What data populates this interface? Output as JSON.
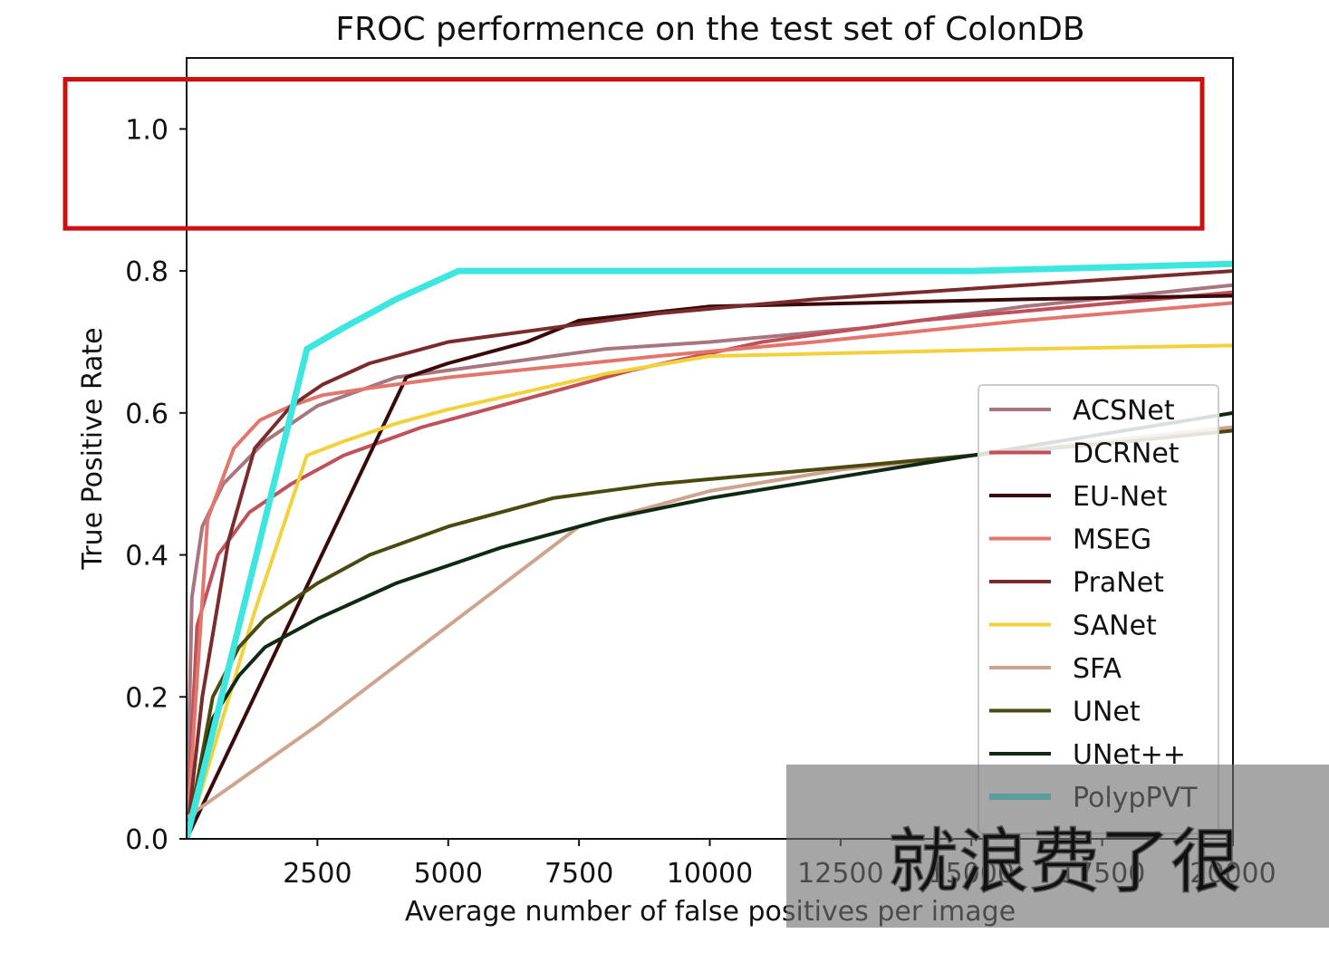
{
  "chart_data": {
    "type": "line",
    "title": "FROC performence on the test set of ColonDB",
    "xlabel": "Average number of false positives per image",
    "ylabel": "True Positive Rate",
    "xlim": [
      0,
      20000
    ],
    "ylim": [
      0,
      1.1
    ],
    "xticks": [
      2500,
      5000,
      7500,
      10000,
      12500,
      15000,
      17500,
      20000
    ],
    "xtick_labels": [
      "2500",
      "5000",
      "7500",
      "10000",
      "12500",
      "15000",
      "17500",
      "20000"
    ],
    "yticks": [
      0.0,
      0.2,
      0.4,
      0.6,
      0.8,
      1.0
    ],
    "ytick_labels": [
      "0.0",
      "0.2",
      "0.4",
      "0.6",
      "0.8",
      "1.0"
    ],
    "grid": false,
    "legend_position": "lower-right",
    "highlight_box": {
      "y_range": [
        0.86,
        1.07
      ],
      "color": "#cc1111"
    },
    "series": [
      {
        "name": "ACSNet",
        "color": "#a8767e",
        "width": 4,
        "x": [
          0,
          100,
          300,
          700,
          1500,
          2500,
          4000,
          6000,
          8000,
          10000,
          13000,
          16000,
          20000
        ],
        "y": [
          0,
          0.34,
          0.44,
          0.5,
          0.56,
          0.61,
          0.65,
          0.67,
          0.69,
          0.7,
          0.72,
          0.75,
          0.78
        ]
      },
      {
        "name": "DCRNet",
        "color": "#c0505a",
        "width": 4,
        "x": [
          0,
          200,
          600,
          1200,
          2000,
          3000,
          4500,
          6500,
          8500,
          11000,
          14000,
          17000,
          20000
        ],
        "y": [
          0,
          0.3,
          0.4,
          0.46,
          0.5,
          0.54,
          0.58,
          0.62,
          0.66,
          0.7,
          0.73,
          0.75,
          0.77
        ]
      },
      {
        "name": "EU-Net",
        "color": "#3a0a0a",
        "width": 4,
        "x": [
          0,
          4200,
          5000,
          6500,
          7500,
          10000,
          13000,
          16000,
          20000
        ],
        "y": [
          0,
          0.65,
          0.67,
          0.7,
          0.73,
          0.75,
          0.755,
          0.76,
          0.765
        ]
      },
      {
        "name": "MSEG",
        "color": "#e2766c",
        "width": 4,
        "x": [
          0,
          400,
          900,
          1400,
          2000,
          2600,
          3500,
          5000,
          7000,
          9000,
          12000,
          16000,
          20000
        ],
        "y": [
          0,
          0.45,
          0.55,
          0.59,
          0.61,
          0.625,
          0.635,
          0.65,
          0.665,
          0.68,
          0.7,
          0.73,
          0.755
        ]
      },
      {
        "name": "PraNet",
        "color": "#7a2b2b",
        "width": 4,
        "x": [
          0,
          300,
          800,
          1300,
          2000,
          2600,
          3500,
          5000,
          7000,
          9000,
          12000,
          16000,
          20000
        ],
        "y": [
          0,
          0.2,
          0.42,
          0.55,
          0.61,
          0.64,
          0.67,
          0.7,
          0.72,
          0.74,
          0.76,
          0.78,
          0.8
        ]
      },
      {
        "name": "SANet",
        "color": "#f2d13a",
        "width": 4,
        "x": [
          0,
          1300,
          2300,
          3000,
          4000,
          5000,
          6500,
          8000,
          10000,
          13000,
          16000,
          20000
        ],
        "y": [
          0,
          0.32,
          0.54,
          0.56,
          0.585,
          0.605,
          0.63,
          0.655,
          0.68,
          0.685,
          0.69,
          0.695
        ]
      },
      {
        "name": "SFA",
        "color": "#cfa48e",
        "width": 4,
        "x": [
          0,
          2500,
          5000,
          7500,
          10000,
          12500,
          15000,
          17500,
          20000
        ],
        "y": [
          0.03,
          0.16,
          0.3,
          0.44,
          0.49,
          0.52,
          0.54,
          0.56,
          0.58
        ]
      },
      {
        "name": "UNet",
        "color": "#4a4a10",
        "width": 4,
        "x": [
          0,
          500,
          1000,
          1500,
          2500,
          3500,
          5000,
          7000,
          9000,
          12000,
          15000,
          18000,
          20000
        ],
        "y": [
          0,
          0.2,
          0.27,
          0.31,
          0.36,
          0.4,
          0.44,
          0.48,
          0.5,
          0.52,
          0.54,
          0.56,
          0.575
        ]
      },
      {
        "name": "UNet++",
        "color": "#0e2a12",
        "width": 4,
        "x": [
          0,
          500,
          1000,
          1500,
          2500,
          4000,
          6000,
          8000,
          10000,
          12500,
          15000,
          17500,
          20000
        ],
        "y": [
          0,
          0.17,
          0.23,
          0.27,
          0.31,
          0.36,
          0.41,
          0.45,
          0.48,
          0.51,
          0.54,
          0.57,
          0.6
        ]
      },
      {
        "name": "PolypPVT",
        "color": "#3ee6e0",
        "width": 7,
        "x": [
          0,
          2300,
          3000,
          4000,
          5200,
          10000,
          15000,
          20000
        ],
        "y": [
          0,
          0.69,
          0.72,
          0.76,
          0.8,
          0.8,
          0.8,
          0.81
        ]
      }
    ]
  },
  "caption_overlay": {
    "text": "就浪费了很"
  }
}
